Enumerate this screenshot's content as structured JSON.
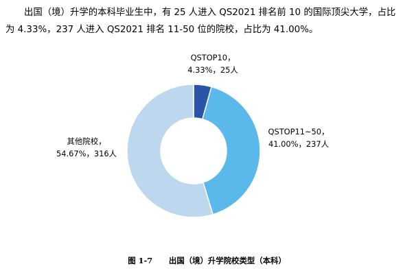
{
  "paragraph": {
    "line1": "出国（境）升学的本科毕业生中，有 25 人进入 QS2021 排名前 10 的国际顶尖大学，占比",
    "line2": "为 4.33%，237 人进入 QS2021 排名 11-50 位的院校，占比为 41.00%。"
  },
  "chart_data": {
    "type": "pie",
    "donut": true,
    "title": "",
    "slices": [
      {
        "name": "QSTOP10",
        "value": 25,
        "percent": 4.33,
        "color": "#2855A6",
        "label_line1": "QSTOP10，",
        "label_line2": "4.33%，25人"
      },
      {
        "name": "QSTOP11~50",
        "value": 237,
        "percent": 41.0,
        "color": "#5AB8EA",
        "label_line1": "QSTOP11~50，",
        "label_line2": "41.00%，237人"
      },
      {
        "name": "其他院校",
        "value": 316,
        "percent": 54.67,
        "color": "#BDD7EE",
        "label_line1": "其他院校，",
        "label_line2": "54.67%，316人"
      }
    ]
  },
  "caption": {
    "number": "图 1-7",
    "text": "出国（境）升学院校类型（本科）"
  }
}
